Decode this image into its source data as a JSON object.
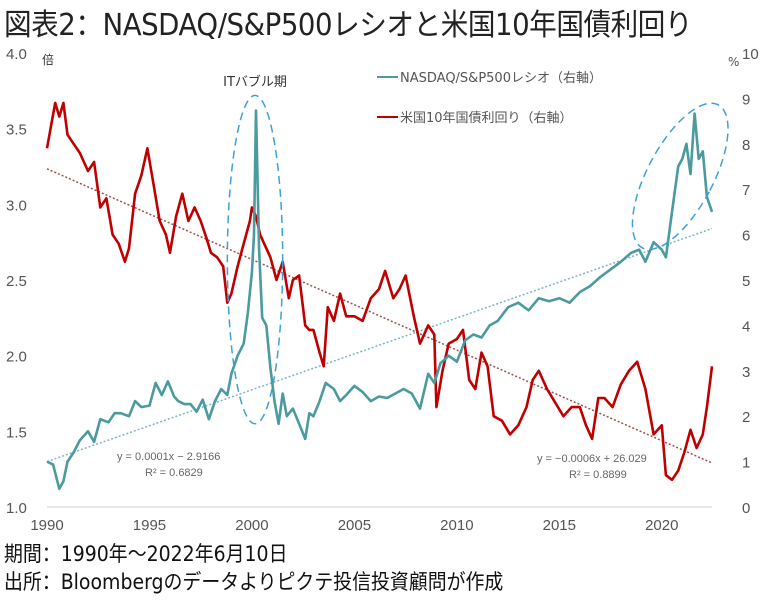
{
  "title": "図表2：NASDAQ/S&P500レシオと米国10年国債利回り",
  "footer": {
    "period": "期間：1990年～2022年6月10日",
    "source": "出所：Bloombergのデータよりピクテ投信投資顧問が作成"
  },
  "chart_data": {
    "type": "line",
    "title": "図表2：NASDAQ/S&P500レシオと米国10年国債利回り",
    "xlabel": "",
    "x_range": [
      1990,
      2022.45
    ],
    "x_ticks": [
      "1990",
      "1995",
      "2000",
      "2005",
      "2010",
      "2015",
      "2020"
    ],
    "left_axis": {
      "unit_label": "倍",
      "range": [
        1.0,
        4.0
      ],
      "ticks": [
        "1.0",
        "1.5",
        "2.0",
        "2.5",
        "3.0",
        "3.5",
        "4.0"
      ]
    },
    "right_axis": {
      "unit_label": "%",
      "range": [
        0,
        10
      ],
      "ticks": [
        "0",
        "1",
        "2",
        "3",
        "4",
        "5",
        "6",
        "7",
        "8",
        "9",
        "10"
      ]
    },
    "grid": false,
    "legend_position": "top-right",
    "series": [
      {
        "name": "NASDAQ/S&P500レシオ（右軸）",
        "axis": "left",
        "color": "#4a9a9e",
        "x": [
          1990.0,
          1990.3,
          1990.6,
          1990.8,
          1991.0,
          1991.3,
          1991.6,
          1992.0,
          1992.3,
          1992.6,
          1993.0,
          1993.3,
          1993.6,
          1994.0,
          1994.3,
          1994.6,
          1995.0,
          1995.3,
          1995.6,
          1995.9,
          1996.2,
          1996.4,
          1996.7,
          1997.0,
          1997.3,
          1997.6,
          1997.9,
          1998.2,
          1998.5,
          1998.8,
          1999.0,
          1999.3,
          1999.6,
          1999.8,
          2000.0,
          2000.1,
          2000.2,
          2000.35,
          2000.5,
          2000.7,
          2000.9,
          2001.1,
          2001.3,
          2001.5,
          2001.7,
          2002.0,
          2002.3,
          2002.6,
          2002.8,
          2003.0,
          2003.3,
          2003.6,
          2004.0,
          2004.3,
          2004.6,
          2005.0,
          2005.4,
          2005.8,
          2006.2,
          2006.6,
          2007.0,
          2007.4,
          2007.8,
          2008.2,
          2008.6,
          2008.9,
          2009.2,
          2009.6,
          2010.0,
          2010.4,
          2010.8,
          2011.2,
          2011.6,
          2012.0,
          2012.5,
          2013.0,
          2013.5,
          2014.0,
          2014.5,
          2015.0,
          2015.5,
          2016.0,
          2016.5,
          2017.0,
          2017.5,
          2018.0,
          2018.5,
          2018.9,
          2019.2,
          2019.6,
          2020.0,
          2020.2,
          2020.5,
          2020.8,
          2021.0,
          2021.2,
          2021.4,
          2021.6,
          2021.8,
          2022.0,
          2022.2,
          2022.45
        ],
        "y": [
          1.3,
          1.28,
          1.12,
          1.17,
          1.3,
          1.36,
          1.44,
          1.5,
          1.43,
          1.58,
          1.56,
          1.62,
          1.62,
          1.6,
          1.7,
          1.66,
          1.67,
          1.82,
          1.74,
          1.83,
          1.73,
          1.7,
          1.68,
          1.68,
          1.63,
          1.71,
          1.58,
          1.7,
          1.78,
          1.74,
          1.88,
          2.0,
          2.08,
          2.28,
          2.55,
          2.8,
          3.62,
          2.7,
          2.25,
          2.2,
          1.92,
          1.7,
          1.55,
          1.75,
          1.6,
          1.65,
          1.55,
          1.45,
          1.62,
          1.6,
          1.7,
          1.82,
          1.78,
          1.7,
          1.74,
          1.8,
          1.76,
          1.7,
          1.73,
          1.72,
          1.75,
          1.78,
          1.75,
          1.65,
          1.88,
          1.82,
          1.95,
          2.0,
          1.96,
          2.1,
          2.14,
          2.12,
          2.2,
          2.23,
          2.32,
          2.35,
          2.3,
          2.38,
          2.36,
          2.38,
          2.35,
          2.42,
          2.46,
          2.52,
          2.57,
          2.62,
          2.68,
          2.7,
          2.62,
          2.75,
          2.7,
          2.65,
          2.95,
          3.25,
          3.3,
          3.4,
          3.2,
          3.6,
          3.3,
          3.35,
          3.05,
          2.95
        ]
      },
      {
        "name": "米国10年国債利回り（右軸）",
        "axis": "right",
        "color": "#c00000",
        "x": [
          1990.0,
          1990.2,
          1990.4,
          1990.6,
          1990.8,
          1991.0,
          1991.3,
          1991.6,
          1992.0,
          1992.3,
          1992.6,
          1992.9,
          1993.2,
          1993.5,
          1993.8,
          1994.0,
          1994.3,
          1994.6,
          1994.9,
          1995.2,
          1995.5,
          1995.8,
          1996.0,
          1996.3,
          1996.6,
          1996.9,
          1997.2,
          1997.5,
          1997.8,
          1998.0,
          1998.3,
          1998.6,
          1998.8,
          1999.0,
          1999.3,
          1999.6,
          1999.9,
          2000.0,
          2000.2,
          2000.4,
          2000.6,
          2000.9,
          2001.2,
          2001.5,
          2001.8,
          2002.0,
          2002.3,
          2002.6,
          2002.8,
          2003.0,
          2003.3,
          2003.5,
          2003.7,
          2004.0,
          2004.3,
          2004.6,
          2005.0,
          2005.4,
          2005.8,
          2006.2,
          2006.5,
          2006.9,
          2007.2,
          2007.5,
          2007.9,
          2008.2,
          2008.6,
          2008.9,
          2009.0,
          2009.3,
          2009.6,
          2010.0,
          2010.3,
          2010.6,
          2010.9,
          2011.2,
          2011.5,
          2011.8,
          2012.2,
          2012.6,
          2013.0,
          2013.4,
          2013.7,
          2014.0,
          2014.4,
          2014.8,
          2015.2,
          2015.6,
          2016.0,
          2016.3,
          2016.6,
          2016.9,
          2017.2,
          2017.6,
          2018.0,
          2018.4,
          2018.8,
          2019.2,
          2019.6,
          2020.0,
          2020.2,
          2020.5,
          2020.8,
          2021.1,
          2021.4,
          2021.7,
          2022.0,
          2022.2,
          2022.45
        ],
        "y": [
          7.9,
          8.4,
          8.9,
          8.6,
          8.9,
          8.2,
          8.0,
          7.8,
          7.4,
          7.6,
          6.6,
          6.8,
          6.0,
          5.8,
          5.4,
          5.7,
          6.9,
          7.3,
          7.9,
          7.1,
          6.3,
          6.0,
          5.6,
          6.4,
          6.9,
          6.3,
          6.6,
          6.3,
          5.9,
          5.6,
          5.5,
          5.3,
          4.5,
          4.7,
          5.3,
          5.8,
          6.3,
          6.6,
          6.4,
          6.0,
          5.8,
          5.5,
          5.0,
          5.4,
          4.6,
          5.0,
          5.1,
          4.0,
          3.9,
          3.9,
          3.4,
          3.1,
          4.4,
          4.1,
          4.7,
          4.2,
          4.2,
          4.1,
          4.6,
          4.8,
          5.2,
          4.6,
          4.8,
          5.1,
          4.2,
          3.6,
          4.0,
          3.8,
          2.2,
          3.0,
          3.6,
          3.7,
          3.9,
          2.8,
          2.6,
          3.4,
          3.1,
          2.0,
          1.9,
          1.6,
          1.8,
          2.2,
          2.8,
          3.0,
          2.6,
          2.3,
          2.0,
          2.2,
          2.2,
          1.8,
          1.5,
          2.4,
          2.4,
          2.2,
          2.7,
          3.0,
          3.2,
          2.6,
          1.6,
          1.8,
          0.7,
          0.6,
          0.8,
          1.2,
          1.7,
          1.3,
          1.6,
          2.2,
          3.1
        ],
        "note": "values approximate, read from chart"
      }
    ],
    "trendlines": [
      {
        "series": "NASDAQ/S&P500レシオ（右軸）",
        "label": "y = 0.0001x − 2.9166",
        "r2_label": "R² = 0.6829",
        "start": [
          1990.0,
          1.3
        ],
        "end": [
          2022.45,
          2.84
        ],
        "color": "#7fb3c9"
      },
      {
        "series": "米国10年国債利回り（右軸）",
        "label": "y = −0.0006x + 26.029",
        "r2_label": "R² = 0.8899",
        "start": [
          1990.0,
          7.45
        ],
        "end": [
          2022.45,
          0.97
        ],
        "color": "#a0504f"
      }
    ],
    "annotations": [
      {
        "text": "ITバブル期",
        "type": "dashed-ellipse",
        "center": [
          2000.1,
          2.3
        ],
        "x_span": [
          1998.8,
          2001.5
        ],
        "y_span": [
          1.55,
          3.72
        ],
        "axis": "left"
      },
      {
        "text": "",
        "type": "dashed-ellipse",
        "center": [
          2020.9,
          3.05
        ],
        "x_span": [
          2019.3,
          2022.5
        ],
        "y_span": [
          2.65,
          3.72
        ],
        "axis": "left"
      }
    ]
  }
}
